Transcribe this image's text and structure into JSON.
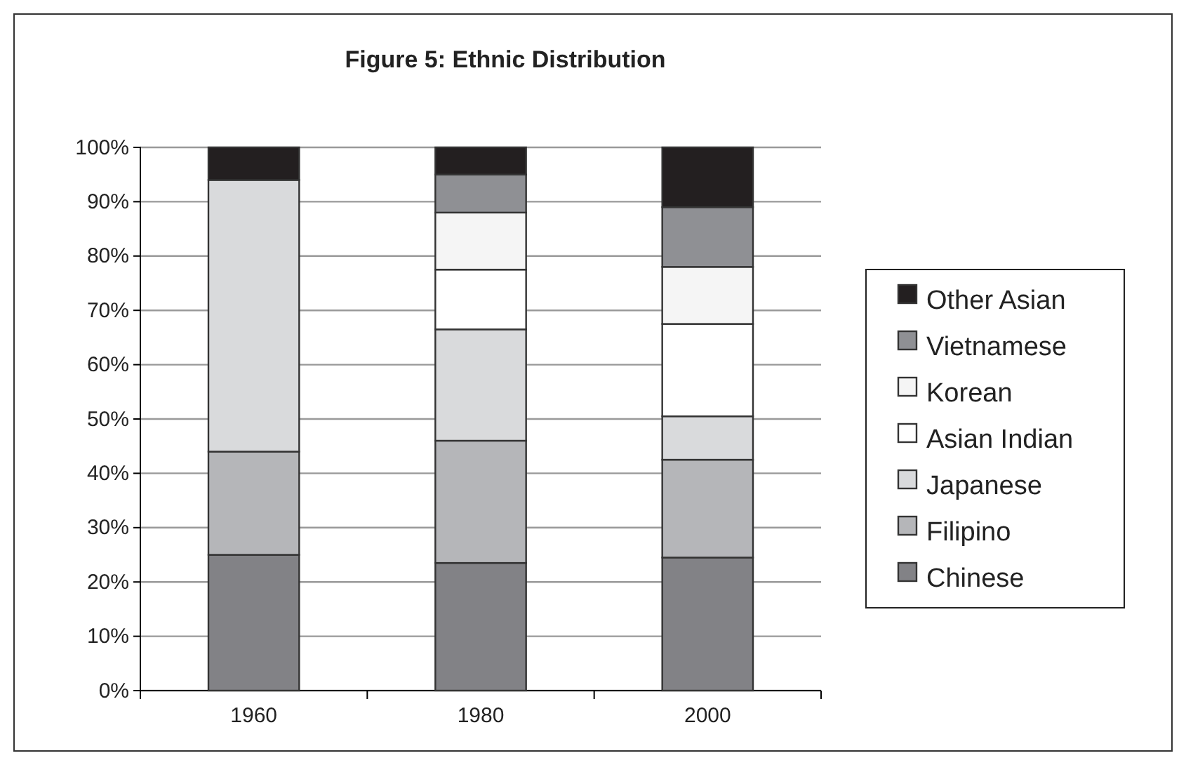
{
  "chart_data": {
    "type": "bar",
    "title": "Figure 5: Ethnic Distribution",
    "stacked": true,
    "categories": [
      "1960",
      "1980",
      "2000"
    ],
    "series": [
      {
        "name": "Chinese",
        "color": "#828286",
        "values": [
          25,
          23.5,
          24.5
        ]
      },
      {
        "name": "Filipino",
        "color": "#b5b6b9",
        "values": [
          19,
          22.5,
          18
        ]
      },
      {
        "name": "Japanese",
        "color": "#d9dadc",
        "values": [
          50,
          20.5,
          8
        ]
      },
      {
        "name": "Asian Indian",
        "color": "#ffffff",
        "values": [
          0,
          11,
          17
        ]
      },
      {
        "name": "Korean",
        "color": "#f5f5f5",
        "values": [
          0,
          10.5,
          10.5
        ]
      },
      {
        "name": "Vietnamese",
        "color": "#8f9094",
        "values": [
          0,
          7,
          11
        ]
      },
      {
        "name": "Other Asian",
        "color": "#231f20",
        "values": [
          6,
          5,
          11
        ]
      }
    ],
    "ylim": [
      0,
      100
    ],
    "yticks": [
      {
        "value": 0,
        "label": "0%"
      },
      {
        "value": 10,
        "label": "10%"
      },
      {
        "value": 20,
        "label": "20%"
      },
      {
        "value": 30,
        "label": "30%"
      },
      {
        "value": 40,
        "label": "40%"
      },
      {
        "value": 50,
        "label": "50%"
      },
      {
        "value": 60,
        "label": "60%"
      },
      {
        "value": 70,
        "label": "70%"
      },
      {
        "value": 80,
        "label": "80%"
      },
      {
        "value": 90,
        "label": "90%"
      },
      {
        "value": 100,
        "label": "100%"
      }
    ],
    "grid": "y",
    "legend": "right"
  }
}
